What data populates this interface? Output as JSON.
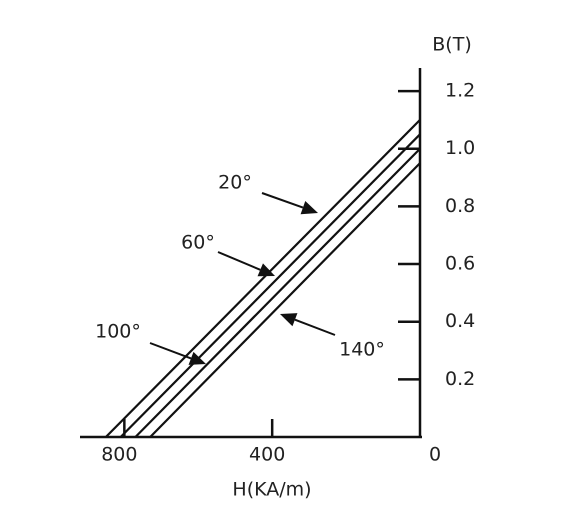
{
  "chart_data": {
    "type": "line",
    "x_label": "H(KA/m)",
    "y_label": "B(T)",
    "xlim": [
      920,
      0
    ],
    "xticks": [
      800,
      400,
      0
    ],
    "ylim": [
      0,
      1.28
    ],
    "yticks": [
      0.2,
      0.4,
      0.6,
      {
        "value": 1,
        "label": "1.0"
      },
      1.2,
      0.8
    ],
    "series": [
      {
        "name": "20°",
        "color": "#111111",
        "x": [
          0,
          850
        ],
        "values": [
          1.1,
          0
        ]
      },
      {
        "name": "60°",
        "color": "#111111",
        "x": [
          0,
          810
        ],
        "values": [
          1.05,
          0
        ]
      },
      {
        "name": "100°",
        "color": "#111111",
        "x": [
          0,
          770
        ],
        "values": [
          1.0,
          0
        ]
      },
      {
        "name": "140°",
        "color": "#111111",
        "x": [
          0,
          730
        ],
        "values": [
          0.95,
          0
        ]
      }
    ]
  }
}
